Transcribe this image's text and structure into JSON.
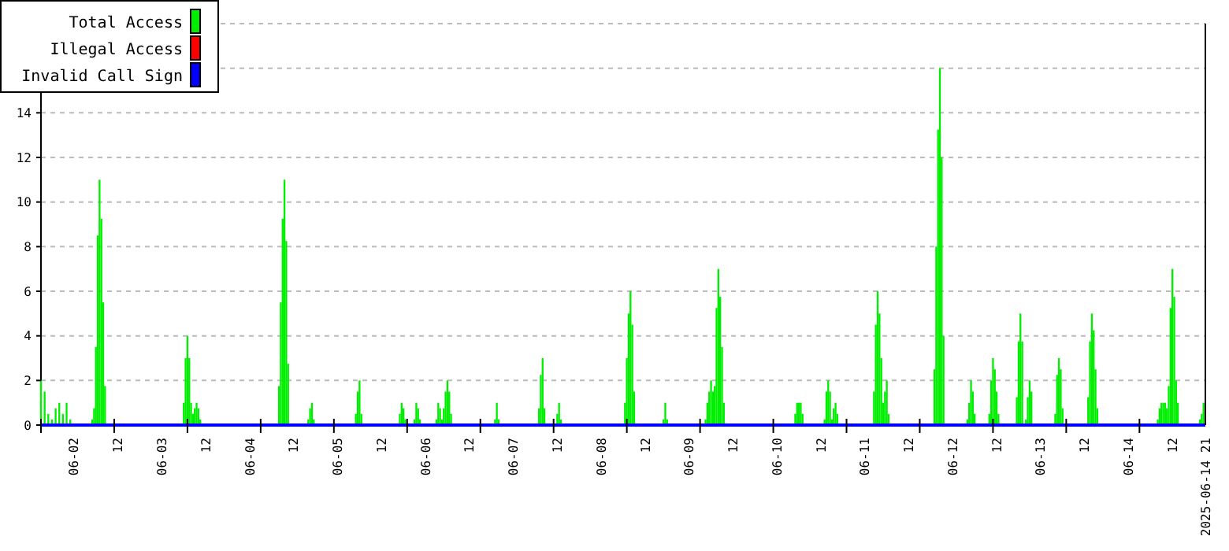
{
  "chart_data": {
    "type": "bar",
    "xlim": [
      "2025-06-01T15:00",
      "2025-06-14T21:00"
    ],
    "xticks": [
      {
        "value": "2025-06-02T00:00",
        "label": "06-02"
      },
      {
        "value": "2025-06-02T12:00",
        "label": "12"
      },
      {
        "value": "2025-06-03T00:00",
        "label": "06-03"
      },
      {
        "value": "2025-06-03T12:00",
        "label": "12"
      },
      {
        "value": "2025-06-04T00:00",
        "label": "06-04"
      },
      {
        "value": "2025-06-04T12:00",
        "label": "12"
      },
      {
        "value": "2025-06-05T00:00",
        "label": "06-05"
      },
      {
        "value": "2025-06-05T12:00",
        "label": "12"
      },
      {
        "value": "2025-06-06T00:00",
        "label": "06-06"
      },
      {
        "value": "2025-06-06T12:00",
        "label": "12"
      },
      {
        "value": "2025-06-07T00:00",
        "label": "06-07"
      },
      {
        "value": "2025-06-07T12:00",
        "label": "12"
      },
      {
        "value": "2025-06-08T00:00",
        "label": "06-08"
      },
      {
        "value": "2025-06-08T12:00",
        "label": "12"
      },
      {
        "value": "2025-06-09T00:00",
        "label": "06-09"
      },
      {
        "value": "2025-06-09T12:00",
        "label": "12"
      },
      {
        "value": "2025-06-10T00:00",
        "label": "06-10"
      },
      {
        "value": "2025-06-10T12:00",
        "label": "12"
      },
      {
        "value": "2025-06-11T00:00",
        "label": "06-11"
      },
      {
        "value": "2025-06-11T12:00",
        "label": "12"
      },
      {
        "value": "2025-06-12T00:00",
        "label": "06-12"
      },
      {
        "value": "2025-06-12T12:00",
        "label": "12"
      },
      {
        "value": "2025-06-13T00:00",
        "label": "06-13"
      },
      {
        "value": "2025-06-13T12:00",
        "label": "12"
      },
      {
        "value": "2025-06-14T00:00",
        "label": "06-14"
      },
      {
        "value": "2025-06-14T12:00",
        "label": "12"
      },
      {
        "value": "2025-06-14T21:00",
        "label": "2025-06-14 21"
      },
      {
        "value": "2025-06-01T15:00",
        "label": null
      },
      {
        "value": "2025-06-02T11:00",
        "label": null
      },
      {
        "value": "2025-06-03T07:00",
        "label": null
      },
      {
        "value": "2025-06-04T03:00",
        "label": null
      },
      {
        "value": "2025-06-04T23:00",
        "label": null
      },
      {
        "value": "2025-06-05T19:00",
        "label": null
      },
      {
        "value": "2025-06-06T15:00",
        "label": null
      },
      {
        "value": "2025-06-07T11:00",
        "label": null
      },
      {
        "value": "2025-06-08T07:00",
        "label": null
      },
      {
        "value": "2025-06-09T03:00",
        "label": null
      },
      {
        "value": "2025-06-09T23:00",
        "label": null
      },
      {
        "value": "2025-06-10T19:00",
        "label": null
      },
      {
        "value": "2025-06-11T15:00",
        "label": null
      },
      {
        "value": "2025-06-12T11:00",
        "label": null
      },
      {
        "value": "2025-06-13T07:00",
        "label": null
      },
      {
        "value": "2025-06-14T03:00",
        "label": null
      }
    ],
    "ylim": [
      0,
      18
    ],
    "yticks": [
      0,
      2,
      4,
      6,
      8,
      10,
      12,
      14,
      {
        "value": 16,
        "label": null
      },
      {
        "value": 18,
        "label": null
      }
    ],
    "grid": "y",
    "legend": "top left",
    "series": [
      {
        "name": "Total Access",
        "color": "#00ee00",
        "x": [
          "2025-06-01T15:00",
          "2025-06-01T16:00",
          "2025-06-01T17:00",
          "2025-06-01T18:00",
          "2025-06-01T19:00",
          "2025-06-01T20:00",
          "2025-06-01T21:00",
          "2025-06-01T22:00",
          "2025-06-01T23:00",
          "2025-06-02T05:00",
          "2025-06-02T05:30",
          "2025-06-02T06:00",
          "2025-06-02T06:30",
          "2025-06-02T07:00",
          "2025-06-02T07:30",
          "2025-06-02T08:00",
          "2025-06-02T08:30",
          "2025-06-03T06:00",
          "2025-06-03T06:30",
          "2025-06-03T07:00",
          "2025-06-03T07:30",
          "2025-06-03T08:00",
          "2025-06-03T08:30",
          "2025-06-03T09:00",
          "2025-06-03T09:30",
          "2025-06-03T10:00",
          "2025-06-03T10:30",
          "2025-06-04T08:00",
          "2025-06-04T08:30",
          "2025-06-04T09:00",
          "2025-06-04T09:30",
          "2025-06-04T10:00",
          "2025-06-04T10:30",
          "2025-06-04T16:00",
          "2025-06-04T16:30",
          "2025-06-04T17:00",
          "2025-06-04T17:30",
          "2025-06-05T05:00",
          "2025-06-05T05:30",
          "2025-06-05T06:00",
          "2025-06-05T06:30",
          "2025-06-05T17:00",
          "2025-06-05T17:30",
          "2025-06-05T18:00",
          "2025-06-05T18:30",
          "2025-06-05T21:00",
          "2025-06-05T21:30",
          "2025-06-05T22:00",
          "2025-06-05T22:30",
          "2025-06-06T03:00",
          "2025-06-06T03:30",
          "2025-06-06T04:00",
          "2025-06-06T04:30",
          "2025-06-06T05:00",
          "2025-06-06T05:30",
          "2025-06-06T06:00",
          "2025-06-06T06:30",
          "2025-06-06T07:00",
          "2025-06-06T19:00",
          "2025-06-06T19:30",
          "2025-06-06T20:00",
          "2025-06-07T07:00",
          "2025-06-07T07:30",
          "2025-06-07T08:00",
          "2025-06-07T08:30",
          "2025-06-07T12:00",
          "2025-06-07T12:30",
          "2025-06-07T13:00",
          "2025-06-08T06:30",
          "2025-06-08T07:00",
          "2025-06-08T07:30",
          "2025-06-08T08:00",
          "2025-06-08T08:30",
          "2025-06-08T09:00",
          "2025-06-08T17:00",
          "2025-06-08T17:30",
          "2025-06-08T18:00",
          "2025-06-09T04:30",
          "2025-06-09T05:00",
          "2025-06-09T05:30",
          "2025-06-09T06:00",
          "2025-06-09T06:30",
          "2025-06-09T07:00",
          "2025-06-09T07:30",
          "2025-06-09T08:00",
          "2025-06-09T08:30",
          "2025-06-09T09:00",
          "2025-06-09T09:30",
          "2025-06-10T05:00",
          "2025-06-10T05:30",
          "2025-06-10T06:00",
          "2025-06-10T06:30",
          "2025-06-10T07:00",
          "2025-06-10T13:00",
          "2025-06-10T13:30",
          "2025-06-10T14:00",
          "2025-06-10T14:30",
          "2025-06-10T15:00",
          "2025-06-10T15:30",
          "2025-06-10T16:00",
          "2025-06-10T16:30",
          "2025-06-11T02:30",
          "2025-06-11T03:00",
          "2025-06-11T03:30",
          "2025-06-11T04:00",
          "2025-06-11T04:30",
          "2025-06-11T05:00",
          "2025-06-11T05:30",
          "2025-06-11T06:00",
          "2025-06-11T06:30",
          "2025-06-11T19:00",
          "2025-06-11T19:30",
          "2025-06-11T20:00",
          "2025-06-11T20:30",
          "2025-06-11T21:00",
          "2025-06-11T21:30",
          "2025-06-12T04:00",
          "2025-06-12T04:30",
          "2025-06-12T05:00",
          "2025-06-12T05:30",
          "2025-06-12T06:00",
          "2025-06-12T10:00",
          "2025-06-12T10:30",
          "2025-06-12T11:00",
          "2025-06-12T11:30",
          "2025-06-12T12:00",
          "2025-06-12T12:30",
          "2025-06-12T17:30",
          "2025-06-12T18:00",
          "2025-06-12T18:30",
          "2025-06-12T19:00",
          "2025-06-12T20:00",
          "2025-06-12T20:30",
          "2025-06-12T21:00",
          "2025-06-12T21:30",
          "2025-06-13T04:00",
          "2025-06-13T04:30",
          "2025-06-13T05:00",
          "2025-06-13T05:30",
          "2025-06-13T06:00",
          "2025-06-13T13:00",
          "2025-06-13T13:30",
          "2025-06-13T14:00",
          "2025-06-13T14:30",
          "2025-06-13T15:00",
          "2025-06-13T15:30",
          "2025-06-14T08:00",
          "2025-06-14T08:30",
          "2025-06-14T09:00",
          "2025-06-14T09:30",
          "2025-06-14T10:00",
          "2025-06-14T10:30",
          "2025-06-14T11:00",
          "2025-06-14T11:30",
          "2025-06-14T12:00",
          "2025-06-14T12:30",
          "2025-06-14T13:00",
          "2025-06-14T13:30",
          "2025-06-14T19:30",
          "2025-06-14T20:00",
          "2025-06-14T20:30"
        ],
        "values": [
          2,
          1.5,
          0.5,
          0.25,
          0.75,
          1,
          0.5,
          1,
          0.25,
          0.25,
          0.75,
          3.5,
          8.5,
          11,
          9.25,
          5.5,
          1.75,
          1,
          3,
          4,
          3,
          1,
          0.5,
          0.75,
          1,
          0.75,
          0.25,
          1.75,
          5.5,
          9.25,
          11,
          8.25,
          2.75,
          0.25,
          0.75,
          1,
          0.25,
          0.5,
          1.5,
          2,
          0.5,
          0.5,
          1,
          0.75,
          0.25,
          0.25,
          1,
          0.75,
          0.25,
          0.25,
          1,
          0.75,
          0.25,
          0.75,
          1.5,
          2,
          1.5,
          0.5,
          0.25,
          1,
          0.25,
          0.75,
          2.25,
          3,
          0.75,
          0.5,
          1,
          0.25,
          1,
          3,
          5,
          6,
          4.5,
          1.5,
          0.25,
          1,
          0.25,
          0.25,
          1,
          1.5,
          2,
          1.5,
          1.75,
          5.25,
          7,
          5.75,
          3.5,
          1,
          0.5,
          1,
          1,
          1,
          0.5,
          0.25,
          1.5,
          2,
          1.5,
          0.25,
          0.75,
          1,
          0.5,
          1.5,
          4.5,
          6,
          5,
          3,
          1,
          1.5,
          2,
          0.5,
          2.5,
          8,
          13.25,
          16,
          12,
          4,
          0.25,
          1,
          2,
          1.5,
          0.5,
          0.5,
          2,
          3,
          2.5,
          1.5,
          0.5,
          1.25,
          3.75,
          5,
          3.75,
          0.25,
          1.25,
          2,
          1.5,
          0.5,
          2.25,
          3,
          2.5,
          0.75,
          1.25,
          3.75,
          5,
          4.25,
          2.5,
          0.75,
          0.25,
          0.75,
          1,
          1,
          1,
          0.75,
          1.75,
          5.25,
          7,
          5.75,
          2,
          1,
          0.25,
          0.5,
          1
        ]
      },
      {
        "name": "Illegal Access",
        "color": "#ff0000",
        "type": "area"
      },
      {
        "name": "Invalid Call Sign",
        "color": "#0000ff",
        "type": "line",
        "x": [
          "2025-06-01T15:00",
          "2025-06-14T21:00"
        ],
        "values": [
          0,
          0
        ]
      }
    ]
  }
}
